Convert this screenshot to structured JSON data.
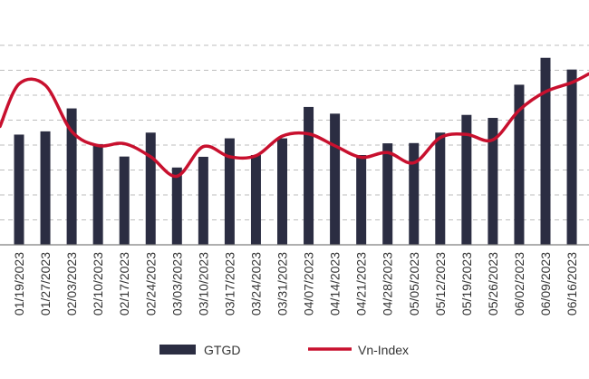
{
  "chart_data": {
    "type": "bar",
    "categories": [
      "01/19/2023",
      "01/27/2023",
      "02/03/2023",
      "02/10/2023",
      "02/17/2023",
      "02/24/2023",
      "03/03/2023",
      "03/10/2023",
      "03/17/2023",
      "03/24/2023",
      "03/31/2023",
      "04/07/2023",
      "04/14/2023",
      "04/21/2023",
      "04/28/2023",
      "05/05/2023",
      "05/12/2023",
      "05/19/2023",
      "05/26/2023",
      "06/02/2023",
      "06/09/2023",
      "06/16/2023"
    ],
    "series": [
      {
        "name": "GTGD",
        "type": "bar",
        "color": "#2b2d42",
        "values": [
          4.42,
          4.55,
          5.47,
          4.04,
          3.54,
          4.5,
          3.1,
          3.53,
          4.27,
          3.6,
          4.27,
          5.53,
          5.26,
          3.6,
          4.07,
          4.08,
          4.5,
          5.21,
          5.09,
          6.42,
          7.5,
          7.03
        ]
      },
      {
        "name": "Vn-Index",
        "type": "line",
        "color": "#c8102e",
        "values": [
          6.45,
          6.4,
          4.55,
          3.98,
          4.06,
          3.53,
          2.75,
          3.94,
          3.53,
          3.57,
          4.36,
          4.45,
          3.97,
          3.51,
          3.7,
          3.29,
          4.3,
          4.43,
          4.21,
          5.4,
          6.14,
          6.51
        ]
      }
    ],
    "legend": {
      "position": "bottom",
      "entries": [
        "GTGD",
        "Vn-Index"
      ]
    },
    "ylim": [
      0,
      8.4
    ],
    "grid": true,
    "title": "",
    "xlabel": "",
    "ylabel": ""
  }
}
